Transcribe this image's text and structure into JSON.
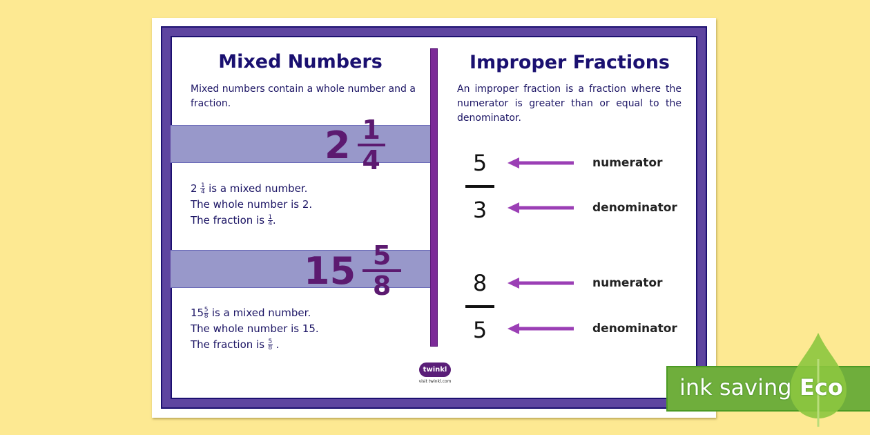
{
  "left": {
    "title": "Mixed Numbers",
    "description": "Mixed numbers contain a whole number and a fraction.",
    "examples": [
      {
        "whole": "2",
        "numerator": "1",
        "denominator": "4",
        "line1_suffix": " is a mixed number.",
        "line2": "The whole number is 2.",
        "line3_prefix": "The fraction is ",
        "line3_suffix": "."
      },
      {
        "whole": "15",
        "numerator": "5",
        "denominator": "8",
        "line1_suffix": " is a mixed number.",
        "line2": "The whole number is 15.",
        "line3_prefix": "The fraction is ",
        "line3_suffix": " ."
      }
    ]
  },
  "right": {
    "title": "Improper Fractions",
    "description": "An improper fraction is a fraction where the numerator is greater than or equal to the denominator.",
    "fractions": [
      {
        "numerator": "5",
        "denominator": "3",
        "numerator_label": "numerator",
        "denominator_label": "denominator"
      },
      {
        "numerator": "8",
        "denominator": "5",
        "numerator_label": "numerator",
        "denominator_label": "denominator"
      }
    ]
  },
  "logo": {
    "text": "twinkl",
    "url_text": "visit twinkl.com"
  },
  "badge": {
    "text": "ink saving",
    "eco": "Eco"
  },
  "colors": {
    "frame": "#5e45a0",
    "band": "#9898ca",
    "arrow": "#9b3fb5",
    "eco_green": "#6fae3c"
  }
}
